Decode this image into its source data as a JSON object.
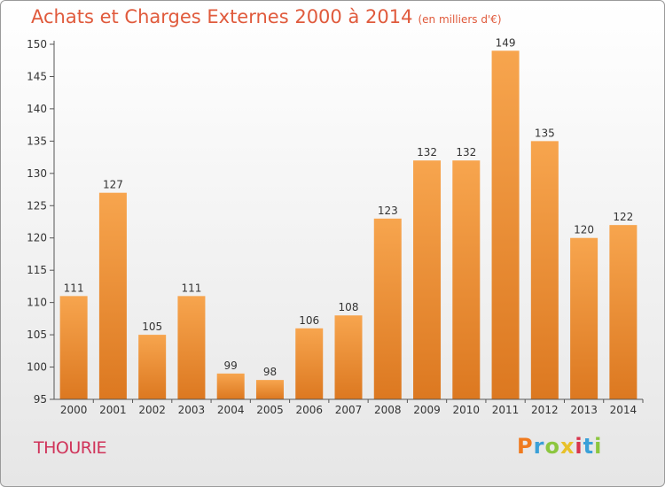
{
  "header": {
    "title": "Achats et Charges Externes 2000 à 2014",
    "subtitle": "(en milliers d'€)"
  },
  "footer": {
    "commune": "THOURIE",
    "logo": "Proxiti"
  },
  "colors": {
    "bar_light": "#f7a54e",
    "bar_dark": "#dc7820",
    "axis": "#555555",
    "title": "#e05a3c",
    "commune": "#d0345a"
  },
  "chart_data": {
    "type": "bar",
    "title": "Achats et Charges Externes 2000 à 2014",
    "subtitle": "(en milliers d'€)",
    "categories": [
      "2000",
      "2001",
      "2002",
      "2003",
      "2004",
      "2005",
      "2006",
      "2007",
      "2008",
      "2009",
      "2010",
      "2011",
      "2012",
      "2013",
      "2014"
    ],
    "values": [
      111,
      127,
      105,
      111,
      99,
      98,
      106,
      108,
      123,
      132,
      132,
      149,
      135,
      120,
      122
    ],
    "ylim": [
      95,
      150
    ],
    "yticks": [
      95,
      100,
      105,
      110,
      115,
      120,
      125,
      130,
      135,
      140,
      145,
      150
    ],
    "grid": false,
    "xlabel": "",
    "ylabel": ""
  }
}
